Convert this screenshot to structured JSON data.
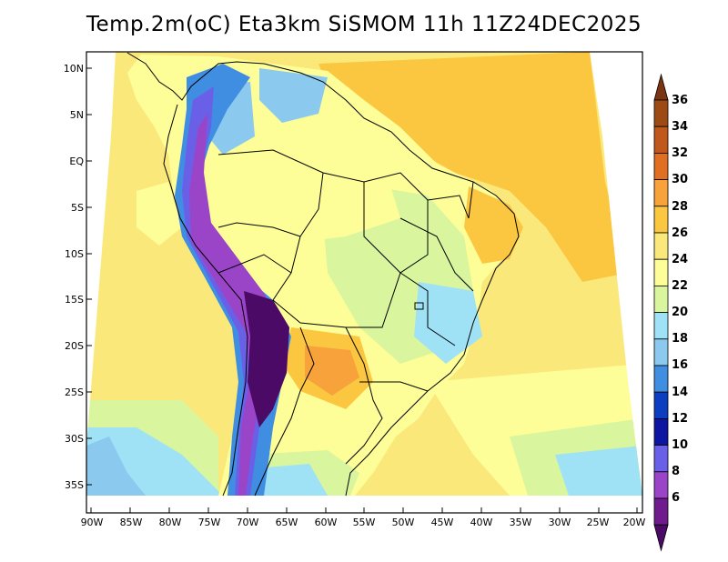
{
  "title": "Temp.2m(oC) Eta3km SiSMOM 11h 11Z24DEC2025",
  "lat_labels": [
    "10N",
    "5N",
    "EQ",
    "5S",
    "10S",
    "15S",
    "20S",
    "25S",
    "30S",
    "35S"
  ],
  "lon_labels": [
    "90W",
    "85W",
    "80W",
    "75W",
    "70W",
    "65W",
    "60W",
    "55W",
    "50W",
    "45W",
    "40W",
    "35W",
    "30W",
    "25W",
    "20W"
  ],
  "colorbar": {
    "labels": [
      "36",
      "34",
      "32",
      "30",
      "28",
      "26",
      "24",
      "22",
      "20",
      "18",
      "16",
      "14",
      "12",
      "10",
      "8",
      "6"
    ],
    "colors": [
      "#7a3512",
      "#9e4a14",
      "#c0581c",
      "#e16f22",
      "#f7a23a",
      "#fbc740",
      "#fae87a",
      "#fefe98",
      "#d9f59e",
      "#9fe2f6",
      "#8bc9ef",
      "#3f8ee2",
      "#0b3fbf",
      "#0d16a0",
      "#6a60e8",
      "#9a44c8",
      "#6f1b8e",
      "#4b0a66"
    ]
  },
  "map_colors": {
    "ocean_warm": "#fbc740",
    "ocean_mild": "#fae87a",
    "land_base": "#fefe98",
    "cool_green": "#d9f59e",
    "cold_cyan": "#9fe2f6",
    "cold_blue": "#8bc9ef",
    "andes_purple": "#4b0a66"
  }
}
